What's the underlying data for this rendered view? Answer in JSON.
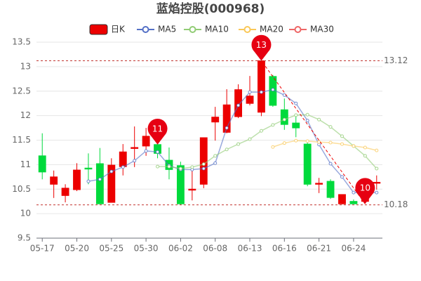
{
  "chart_data": {
    "type": "candlestick",
    "title": "蓝焰控股(000968)",
    "categories": [
      "05-17",
      null,
      null,
      "05-20",
      null,
      null,
      "05-25",
      null,
      null,
      "05-30",
      null,
      null,
      "06-02",
      null,
      null,
      "06-08",
      null,
      null,
      "06-13",
      null,
      null,
      "06-16",
      null,
      null,
      "06-21",
      null,
      null,
      "06-24",
      null,
      null
    ],
    "ylim": [
      9.5,
      13.5
    ],
    "yticks": [
      9.5,
      10,
      10.5,
      11,
      11.5,
      12,
      12.5,
      13,
      13.5
    ],
    "grid": true,
    "series": [
      {
        "name": "日K",
        "type": "candlestick",
        "color": "#ec0000",
        "down_color": "#00da3c",
        "open": [
          11.18,
          10.6,
          10.37,
          10.49,
          10.93,
          11.02,
          10.23,
          10.96,
          11.33,
          11.38,
          11.41,
          11.09,
          10.98,
          10.48,
          10.6,
          11.87,
          11.66,
          11.98,
          12.25,
          12.07,
          12.8,
          12.12,
          11.85,
          11.42,
          10.6,
          10.66,
          10.2,
          10.25,
          10.25,
          10.62
        ],
        "high": [
          11.64,
          10.88,
          10.6,
          11.03,
          11.23,
          11.34,
          11.13,
          11.42,
          11.78,
          11.75,
          11.64,
          11.35,
          11.06,
          10.92,
          11.55,
          12.18,
          12.54,
          12.64,
          12.81,
          13.12,
          12.83,
          12.35,
          11.99,
          11.46,
          10.73,
          10.7,
          10.39,
          10.29,
          10.59,
          10.78
        ],
        "low": [
          10.7,
          10.32,
          10.23,
          10.46,
          10.6,
          10.2,
          10.23,
          10.78,
          10.95,
          11.18,
          11.13,
          10.7,
          10.18,
          10.27,
          10.52,
          11.49,
          11.64,
          11.95,
          12.21,
          11.99,
          12.18,
          11.71,
          11.56,
          10.56,
          10.42,
          10.3,
          10.19,
          10.2,
          10.2,
          10.49
        ],
        "close": [
          10.85,
          10.75,
          10.52,
          10.89,
          10.91,
          10.2,
          10.99,
          11.26,
          11.35,
          11.58,
          11.23,
          10.9,
          10.2,
          10.5,
          11.55,
          11.97,
          12.22,
          12.53,
          12.4,
          13.12,
          12.21,
          11.82,
          11.75,
          10.6,
          10.62,
          10.33,
          10.39,
          10.2,
          10.59,
          10.64
        ]
      },
      {
        "name": "MA5",
        "type": "line",
        "color": "#5470c6",
        "values": [
          null,
          null,
          null,
          null,
          10.66,
          10.7,
          10.86,
          10.95,
          11.08,
          11.28,
          11.26,
          10.98,
          10.9,
          10.9,
          10.92,
          11.03,
          11.75,
          12.21,
          12.48,
          12.48,
          12.53,
          12.42,
          12.25,
          11.9,
          11.41,
          11.02,
          10.75,
          10.43,
          10.43,
          10.43
        ]
      },
      {
        "name": "MA10",
        "type": "line",
        "color": "#91cc75",
        "values": [
          null,
          null,
          null,
          null,
          null,
          null,
          null,
          null,
          null,
          null,
          10.96,
          10.96,
          10.92,
          10.95,
          11.01,
          11.18,
          11.31,
          11.42,
          11.52,
          11.69,
          11.81,
          11.92,
          12.01,
          12.02,
          11.92,
          11.77,
          11.58,
          11.38,
          11.18,
          10.92
        ]
      },
      {
        "name": "MA20",
        "type": "line",
        "color": "#fac858",
        "values": [
          null,
          null,
          null,
          null,
          null,
          null,
          null,
          null,
          null,
          null,
          null,
          null,
          null,
          null,
          null,
          null,
          null,
          null,
          null,
          null,
          11.36,
          11.44,
          11.49,
          11.48,
          11.46,
          11.45,
          11.42,
          11.38,
          11.35,
          11.29
        ]
      },
      {
        "name": "MA30",
        "type": "line",
        "color": "#ee6666",
        "values": [
          null,
          null,
          null,
          null,
          null,
          null,
          null,
          null,
          null,
          null,
          null,
          null,
          null,
          null,
          null,
          null,
          null,
          null,
          null,
          null,
          null,
          null,
          null,
          null,
          null,
          null,
          null,
          null,
          null,
          null
        ]
      }
    ],
    "reference_lines": [
      13.12,
      10.18
    ],
    "mark_points": [
      {
        "value": 11.41,
        "label": "11"
      },
      {
        "value": 10.2,
        "label": "10"
      },
      {
        "value": 13.12,
        "label": "13"
      }
    ]
  }
}
